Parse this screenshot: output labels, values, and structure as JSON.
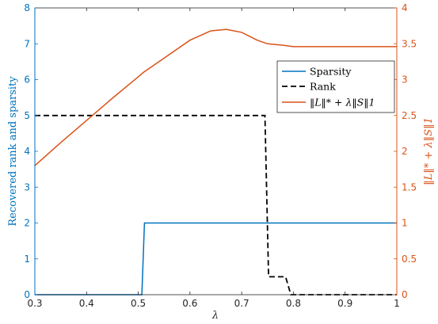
{
  "chart_data": {
    "type": "line",
    "xlabel": "λ",
    "ylabel_left": "Recovered rank and sparsity",
    "ylabel_right": "‖L‖* + λ‖S‖1",
    "xlim": [
      0.3,
      1.0
    ],
    "ylim_left": [
      0,
      8
    ],
    "ylim_right": [
      0,
      4
    ],
    "x_ticks": [
      "0.3",
      "0.4",
      "0.5",
      "0.6",
      "0.7",
      "0.8",
      "0.9",
      "1"
    ],
    "y_ticks_left": [
      "0",
      "1",
      "2",
      "3",
      "4",
      "5",
      "6",
      "7",
      "8"
    ],
    "y_ticks_right": [
      "0",
      "0.5",
      "1",
      "1.5",
      "2",
      "2.5",
      "3",
      "3.5",
      "4"
    ],
    "grid": false,
    "legend_position": "upper-right",
    "colors": {
      "left_axis": "#0072BD",
      "right_axis": "#D95319",
      "rank": "#000000"
    },
    "series": [
      {
        "name": "Sparsity",
        "axis": "left",
        "color": "#0072BD",
        "style": "solid",
        "x": [
          0.3,
          0.507,
          0.512,
          1.0
        ],
        "y": [
          0,
          0,
          2,
          2
        ]
      },
      {
        "name": "Rank",
        "axis": "left",
        "color": "#000000",
        "style": "dashed",
        "x": [
          0.3,
          0.745,
          0.752,
          0.772,
          0.785,
          0.795,
          1.0
        ],
        "y": [
          5,
          5,
          0.5,
          0.5,
          0.5,
          0,
          0
        ]
      },
      {
        "name": "‖L‖* + λ‖S‖1",
        "axis": "right",
        "color": "#D95319",
        "style": "solid",
        "x": [
          0.3,
          0.35,
          0.4,
          0.45,
          0.5,
          0.51,
          0.55,
          0.6,
          0.64,
          0.67,
          0.7,
          0.73,
          0.75,
          0.78,
          0.8,
          0.85,
          0.9,
          1.0
        ],
        "y": [
          1.8,
          2.12,
          2.43,
          2.74,
          3.04,
          3.1,
          3.3,
          3.55,
          3.68,
          3.7,
          3.66,
          3.55,
          3.5,
          3.48,
          3.46,
          3.46,
          3.46,
          3.46
        ]
      }
    ]
  }
}
